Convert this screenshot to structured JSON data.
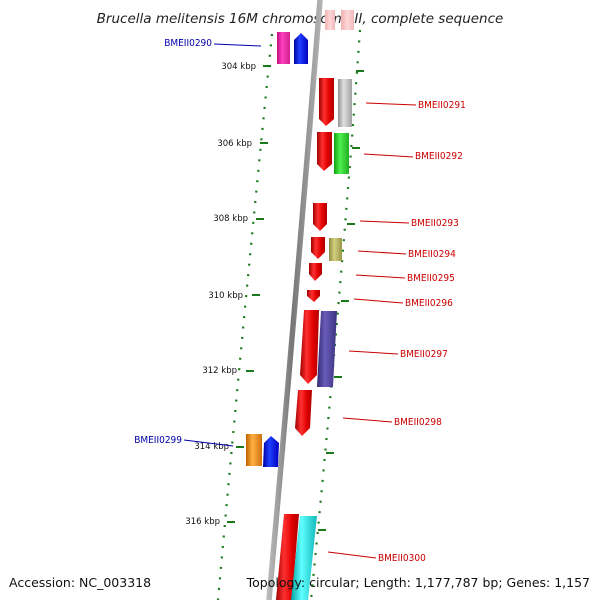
{
  "title": "Brucella melitensis 16M chromosome II, complete sequence",
  "accession": "Accession: NC_003318",
  "summary": "Topology: circular; Length: 1,177,787 bp; Genes: 1,157",
  "colors": {
    "backbone": "#808080",
    "ticks": "#1a7a1a",
    "forward_label": "#0000aa",
    "reverse_label": "#cc0000",
    "strand_gene": "#ff0000"
  },
  "ticks": [
    {
      "label": "304 kbp"
    },
    {
      "label": "306 kbp"
    },
    {
      "label": "308 kbp"
    },
    {
      "label": "310 kbp"
    },
    {
      "label": "312 kbp"
    },
    {
      "label": "314 kbp"
    },
    {
      "label": "316 kbp"
    }
  ],
  "gene_labels": [
    {
      "name": "BMEII0290",
      "strand": "forward"
    },
    {
      "name": "BMEII0291",
      "strand": "reverse"
    },
    {
      "name": "BMEII0292",
      "strand": "reverse"
    },
    {
      "name": "BMEII0293",
      "strand": "reverse"
    },
    {
      "name": "BMEII0294",
      "strand": "reverse"
    },
    {
      "name": "BMEII0295",
      "strand": "reverse"
    },
    {
      "name": "BMEII0296",
      "strand": "reverse"
    },
    {
      "name": "BMEII0297",
      "strand": "reverse"
    },
    {
      "name": "BMEII0298",
      "strand": "reverse"
    },
    {
      "name": "BMEII0299",
      "strand": "forward"
    },
    {
      "name": "BMEII0300",
      "strand": "reverse"
    }
  ]
}
